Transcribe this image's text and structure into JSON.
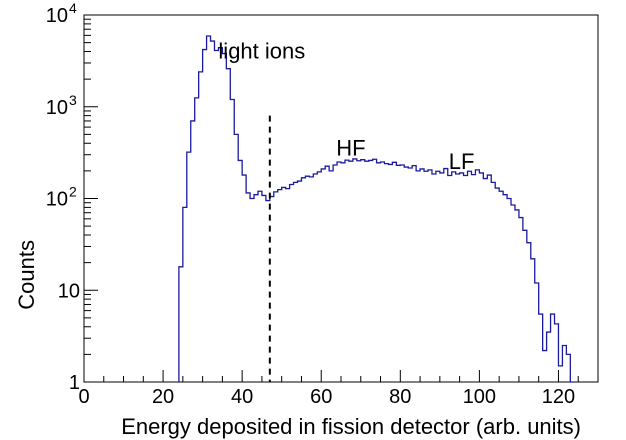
{
  "chart_data": {
    "type": "step",
    "xlabel": "Energy deposited in fission detector (arb. units)",
    "ylabel": "Counts",
    "xlim": [
      0,
      130
    ],
    "ylim": [
      1,
      10000
    ],
    "y_scale": "log",
    "grid": false,
    "x_ticks": [
      0,
      20,
      40,
      60,
      80,
      100,
      120
    ],
    "x_tick_labels": [
      "0",
      "20",
      "40",
      "60",
      "80",
      "100",
      "120"
    ],
    "y_tick_labels": [
      {
        "value": 1,
        "label": "1"
      },
      {
        "value": 10,
        "label": "10"
      },
      {
        "value": 100,
        "label": "10",
        "sup": "2"
      },
      {
        "value": 1000,
        "label": "10",
        "sup": "3"
      },
      {
        "value": 10000,
        "label": "10",
        "sup": "4"
      }
    ],
    "cut_line_x": 47,
    "annotations": [
      {
        "text": "light ions",
        "x": 34,
        "y": 4000
      },
      {
        "text": "HF",
        "x": 67.5,
        "y": 350
      },
      {
        "text": "LF",
        "x": 95.5,
        "y": 250
      }
    ],
    "histogram": {
      "series_color": "#1a1aa0",
      "bin_width": 1,
      "x": [
        24,
        25,
        26,
        27,
        28,
        29,
        30,
        31,
        32,
        33,
        34,
        35,
        36,
        37,
        38,
        39,
        40,
        41,
        42,
        43,
        44,
        45,
        46,
        47,
        48,
        49,
        50,
        51,
        52,
        53,
        54,
        55,
        56,
        57,
        58,
        59,
        60,
        61,
        62,
        63,
        64,
        65,
        66,
        67,
        68,
        69,
        70,
        71,
        72,
        73,
        74,
        75,
        76,
        77,
        78,
        79,
        80,
        81,
        82,
        83,
        84,
        85,
        86,
        87,
        88,
        89,
        90,
        91,
        92,
        93,
        94,
        95,
        96,
        97,
        98,
        99,
        100,
        101,
        102,
        103,
        104,
        105,
        106,
        107,
        108,
        109,
        110,
        111,
        112,
        113,
        114,
        115,
        116,
        117,
        118,
        119,
        120,
        121,
        122,
        123
      ],
      "counts": [
        18,
        80,
        320,
        700,
        1250,
        2400,
        4200,
        5900,
        5200,
        4100,
        4400,
        3800,
        2600,
        1200,
        500,
        260,
        180,
        115,
        100,
        110,
        120,
        108,
        95,
        105,
        118,
        125,
        132,
        128,
        142,
        150,
        155,
        168,
        175,
        172,
        185,
        195,
        210,
        225,
        200,
        232,
        250,
        245,
        262,
        255,
        270,
        258,
        265,
        255,
        260,
        268,
        245,
        250,
        240,
        235,
        248,
        230,
        232,
        220,
        215,
        228,
        200,
        210,
        198,
        205,
        185,
        198,
        190,
        212,
        178,
        195,
        185,
        190,
        178,
        198,
        182,
        205,
        190,
        165,
        180,
        150,
        130,
        120,
        110,
        100,
        85,
        75,
        62,
        45,
        33,
        22,
        12,
        5.5,
        2.2,
        3.5,
        5.5,
        4.3,
        1.5,
        2.5,
        2,
        1
      ]
    }
  }
}
